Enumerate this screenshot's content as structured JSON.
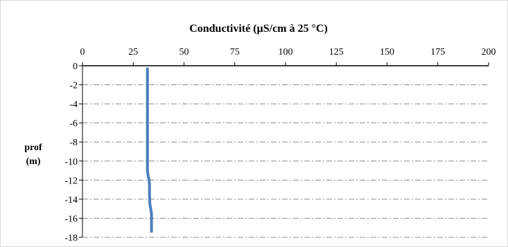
{
  "chart_data": {
    "type": "line",
    "title": "Conductivité (µS/cm à 25 °C)",
    "xlabel": "",
    "ylabel": [
      "prof",
      "(m)"
    ],
    "xlim": [
      0,
      200
    ],
    "ylim": [
      -18,
      0
    ],
    "x_ticks": [
      0,
      25,
      50,
      75,
      100,
      125,
      150,
      175,
      200
    ],
    "y_ticks": [
      0,
      -2,
      -4,
      -6,
      -8,
      -10,
      -12,
      -14,
      -16,
      -18
    ],
    "x_axis_position": "top",
    "grid": "horizontal dash-dot",
    "legend": "none",
    "series": [
      {
        "color": "#4a7ebb",
        "x": [
          32,
          32,
          32,
          32,
          32,
          32,
          32,
          32,
          32,
          32,
          32,
          32,
          32.3,
          32.8,
          33,
          33,
          33.2,
          33.6,
          34,
          34,
          34
        ],
        "y": [
          -0.2,
          -1,
          -2,
          -3,
          -4,
          -5,
          -6,
          -7,
          -8,
          -9,
          -10,
          -11,
          -11.5,
          -12,
          -12.5,
          -13.5,
          -14.5,
          -15,
          -15.5,
          -16.5,
          -17.5
        ]
      }
    ]
  }
}
